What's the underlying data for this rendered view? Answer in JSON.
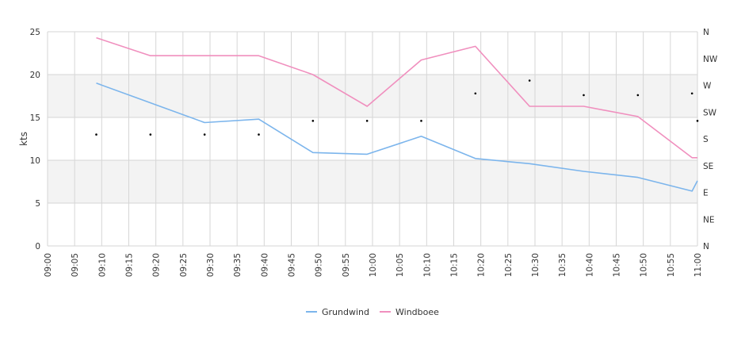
{
  "chart_data": {
    "type": "line",
    "title": "",
    "ylabel": "kts",
    "xlabel": "",
    "ylim": [
      0,
      25
    ],
    "y_ticks": [
      0,
      5,
      10,
      15,
      20,
      25
    ],
    "x_ticks": [
      "09:00",
      "09:05",
      "09:10",
      "09:15",
      "09:20",
      "09:25",
      "09:30",
      "09:35",
      "09:40",
      "09:45",
      "09:50",
      "09:55",
      "10:00",
      "10:05",
      "10:10",
      "10:15",
      "10:20",
      "10:25",
      "10:30",
      "10:35",
      "10:40",
      "10:45",
      "10:50",
      "10:55",
      "11:00"
    ],
    "right_axis_labels": [
      "N",
      "NE",
      "E",
      "SE",
      "S",
      "SW",
      "W",
      "NW",
      "N"
    ],
    "bands": [
      [
        5,
        10
      ],
      [
        15,
        20
      ]
    ],
    "grid": true,
    "legend_position": "bottom",
    "series": [
      {
        "name": "Grundwind",
        "color": "#7cb5ec",
        "x": [
          "09:09",
          "09:19",
          "09:29",
          "09:39",
          "09:49",
          "09:59",
          "10:09",
          "10:19",
          "10:29",
          "10:39",
          "10:49",
          "10:59",
          "11:00"
        ],
        "values": [
          19.0,
          16.7,
          14.4,
          14.8,
          10.9,
          10.7,
          12.8,
          10.2,
          9.6,
          8.7,
          8.0,
          6.4,
          7.6
        ]
      },
      {
        "name": "Windboee",
        "color": "#f08fbe",
        "x": [
          "09:09",
          "09:19",
          "09:29",
          "09:39",
          "09:49",
          "09:59",
          "10:09",
          "10:19",
          "10:29",
          "10:39",
          "10:49",
          "10:59",
          "11:00"
        ],
        "values": [
          24.3,
          22.2,
          22.2,
          22.2,
          20.0,
          16.3,
          21.7,
          23.3,
          16.3,
          16.3,
          15.1,
          10.3,
          10.3
        ]
      }
    ],
    "direction_points": {
      "x": [
        "09:09",
        "09:19",
        "09:29",
        "09:39",
        "09:49",
        "09:59",
        "10:09",
        "10:19",
        "10:29",
        "10:39",
        "10:49",
        "10:59",
        "11:00"
      ],
      "values": [
        13.0,
        13.0,
        13.0,
        13.0,
        14.6,
        14.6,
        14.6,
        17.8,
        19.3,
        17.6,
        17.6,
        17.8,
        14.6
      ]
    }
  }
}
